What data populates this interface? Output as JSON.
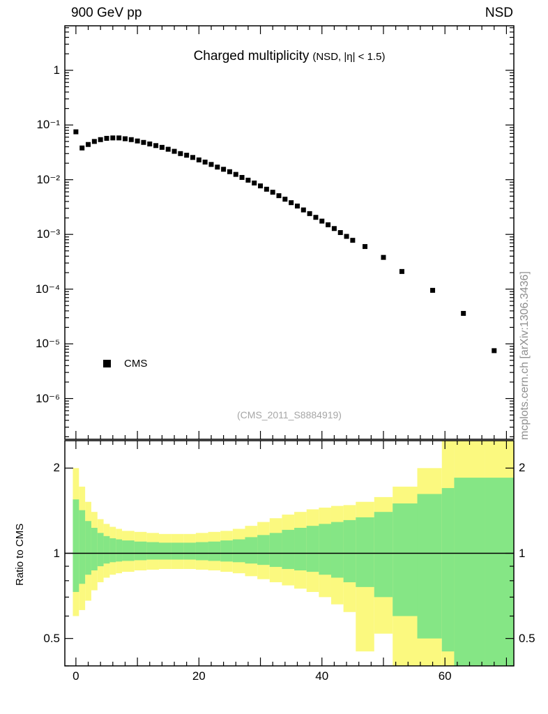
{
  "header": {
    "left": "900 GeV pp",
    "right": "NSD"
  },
  "title": {
    "main": "Charged multiplicity",
    "condition": "(NSD, |η| < 1.5)"
  },
  "legend": {
    "items": [
      {
        "label": "CMS",
        "marker": "filled-square",
        "color": "#000000"
      }
    ]
  },
  "watermark": "(CMS_2011_S8884919)",
  "side_note": "mcplots.cern.ch [arXiv:1306.3436]",
  "axes": {
    "ratio_ylabel": "Ratio to CMS",
    "x_tick_labels": [
      "0",
      "20",
      "40",
      "60"
    ],
    "x_tick_values": [
      0,
      20,
      40,
      60
    ],
    "top_y_tick_labels": [
      "1",
      "10⁻¹",
      "10⁻²",
      "10⁻³",
      "10⁻⁴",
      "10⁻⁵",
      "10⁻⁶"
    ],
    "top_y_tick_values": [
      1,
      0.1,
      0.01,
      0.001,
      0.0001,
      1e-05,
      1e-06
    ],
    "ratio_y_tick_labels": [
      "2",
      "1",
      "0.5"
    ],
    "ratio_y_tick_values": [
      2,
      1,
      0.5
    ]
  },
  "colors": {
    "marker": "#000000",
    "outer_band": "#fbf97f",
    "inner_band": "#85e685",
    "watermark": "#a6a6a6",
    "side_note": "#8f8f8f"
  },
  "chart_data": {
    "type": "scatter",
    "title": "Charged multiplicity (NSD, |η| < 1.5)",
    "xlabel": "",
    "ylabel": "",
    "top_panel": {
      "yscale": "log",
      "xlim": [
        -1.8,
        71.2
      ],
      "ylim": [
        1.8e-07,
        6.5
      ],
      "series": [
        {
          "name": "CMS",
          "marker": "square",
          "x": [
            0,
            1,
            2,
            3,
            4,
            5,
            6,
            7,
            8,
            9,
            10,
            11,
            12,
            13,
            14,
            15,
            16,
            17,
            18,
            19,
            20,
            21,
            22,
            23,
            24,
            25,
            26,
            27,
            28,
            29,
            30,
            31,
            32,
            33,
            34,
            35,
            36,
            37,
            38,
            39,
            40,
            41,
            42,
            43,
            44,
            45,
            47,
            50,
            53,
            58,
            63,
            68
          ],
          "y": [
            0.075,
            0.038,
            0.044,
            0.05,
            0.054,
            0.057,
            0.058,
            0.058,
            0.056,
            0.054,
            0.051,
            0.048,
            0.045,
            0.042,
            0.039,
            0.036,
            0.033,
            0.03,
            0.028,
            0.0255,
            0.023,
            0.021,
            0.019,
            0.017,
            0.0155,
            0.014,
            0.0125,
            0.011,
            0.0098,
            0.0087,
            0.0077,
            0.0067,
            0.0059,
            0.0051,
            0.0044,
            0.0038,
            0.0033,
            0.0028,
            0.0024,
            0.00205,
            0.00175,
            0.0015,
            0.00128,
            0.00108,
            0.00092,
            0.00078,
            0.0006,
            0.00038,
            0.00021,
            9.5e-05,
            3.6e-05,
            7.5e-06
          ]
        }
      ]
    },
    "ratio_panel": {
      "yscale": "log",
      "ylim": [
        0.4,
        2.5
      ],
      "reference_line": 1,
      "bands": [
        {
          "name": "outer",
          "color_key": "outer_band",
          "bins": [
            [
              -0.5,
              0.5,
              0.6,
              2.0
            ],
            [
              0.5,
              1.5,
              0.63,
              1.72
            ],
            [
              1.5,
              2.5,
              0.68,
              1.52
            ],
            [
              2.5,
              3.5,
              0.74,
              1.4
            ],
            [
              3.5,
              4.5,
              0.79,
              1.32
            ],
            [
              4.5,
              5.5,
              0.82,
              1.27
            ],
            [
              5.5,
              6.5,
              0.84,
              1.24
            ],
            [
              6.5,
              7.5,
              0.85,
              1.22
            ],
            [
              7.5,
              9.5,
              0.86,
              1.2
            ],
            [
              9.5,
              11.5,
              0.87,
              1.19
            ],
            [
              11.5,
              13.5,
              0.875,
              1.18
            ],
            [
              13.5,
              15.5,
              0.88,
              1.17
            ],
            [
              15.5,
              17.5,
              0.88,
              1.17
            ],
            [
              17.5,
              19.5,
              0.88,
              1.17
            ],
            [
              19.5,
              21.5,
              0.875,
              1.18
            ],
            [
              21.5,
              23.5,
              0.87,
              1.19
            ],
            [
              23.5,
              25.5,
              0.86,
              1.2
            ],
            [
              25.5,
              27.5,
              0.85,
              1.22
            ],
            [
              27.5,
              29.5,
              0.83,
              1.25
            ],
            [
              29.5,
              31.5,
              0.81,
              1.29
            ],
            [
              31.5,
              33.5,
              0.79,
              1.33
            ],
            [
              33.5,
              35.5,
              0.77,
              1.37
            ],
            [
              35.5,
              37.5,
              0.75,
              1.4
            ],
            [
              37.5,
              39.5,
              0.73,
              1.43
            ],
            [
              39.5,
              41.5,
              0.7,
              1.45
            ],
            [
              41.5,
              43.5,
              0.66,
              1.47
            ],
            [
              43.5,
              45.5,
              0.62,
              1.48
            ],
            [
              45.5,
              48.5,
              0.45,
              1.52
            ],
            [
              48.5,
              51.5,
              0.52,
              1.58
            ],
            [
              51.5,
              55.5,
              0.38,
              1.72
            ],
            [
              55.5,
              59.5,
              0.38,
              2.0
            ],
            [
              59.5,
              61.5,
              0.38,
              2.5
            ],
            [
              61.5,
              66.5,
              0.38,
              2.5
            ],
            [
              66.5,
              71.2,
              0.38,
              2.5
            ]
          ]
        },
        {
          "name": "inner",
          "color_key": "inner_band",
          "bins": [
            [
              -0.5,
              0.5,
              0.73,
              1.55
            ],
            [
              0.5,
              1.5,
              0.78,
              1.42
            ],
            [
              1.5,
              2.5,
              0.84,
              1.3
            ],
            [
              2.5,
              3.5,
              0.87,
              1.23
            ],
            [
              3.5,
              4.5,
              0.9,
              1.18
            ],
            [
              4.5,
              5.5,
              0.92,
              1.15
            ],
            [
              5.5,
              6.5,
              0.93,
              1.13
            ],
            [
              6.5,
              7.5,
              0.935,
              1.12
            ],
            [
              7.5,
              9.5,
              0.94,
              1.11
            ],
            [
              9.5,
              11.5,
              0.945,
              1.1
            ],
            [
              11.5,
              13.5,
              0.95,
              1.095
            ],
            [
              13.5,
              15.5,
              0.95,
              1.09
            ],
            [
              15.5,
              17.5,
              0.95,
              1.09
            ],
            [
              17.5,
              19.5,
              0.95,
              1.09
            ],
            [
              19.5,
              21.5,
              0.945,
              1.095
            ],
            [
              21.5,
              23.5,
              0.94,
              1.1
            ],
            [
              23.5,
              25.5,
              0.935,
              1.11
            ],
            [
              25.5,
              27.5,
              0.93,
              1.12
            ],
            [
              27.5,
              29.5,
              0.92,
              1.14
            ],
            [
              29.5,
              31.5,
              0.91,
              1.16
            ],
            [
              31.5,
              33.5,
              0.895,
              1.18
            ],
            [
              33.5,
              35.5,
              0.88,
              1.21
            ],
            [
              35.5,
              37.5,
              0.87,
              1.23
            ],
            [
              37.5,
              39.5,
              0.86,
              1.25
            ],
            [
              39.5,
              41.5,
              0.84,
              1.27
            ],
            [
              41.5,
              43.5,
              0.82,
              1.29
            ],
            [
              43.5,
              45.5,
              0.79,
              1.31
            ],
            [
              45.5,
              48.5,
              0.76,
              1.34
            ],
            [
              48.5,
              51.5,
              0.7,
              1.4
            ],
            [
              51.5,
              55.5,
              0.6,
              1.5
            ],
            [
              55.5,
              59.5,
              0.5,
              1.62
            ],
            [
              59.5,
              61.5,
              0.45,
              1.7
            ],
            [
              61.5,
              66.5,
              0.4,
              1.85
            ],
            [
              66.5,
              71.2,
              0.38,
              1.85
            ]
          ]
        }
      ]
    }
  }
}
